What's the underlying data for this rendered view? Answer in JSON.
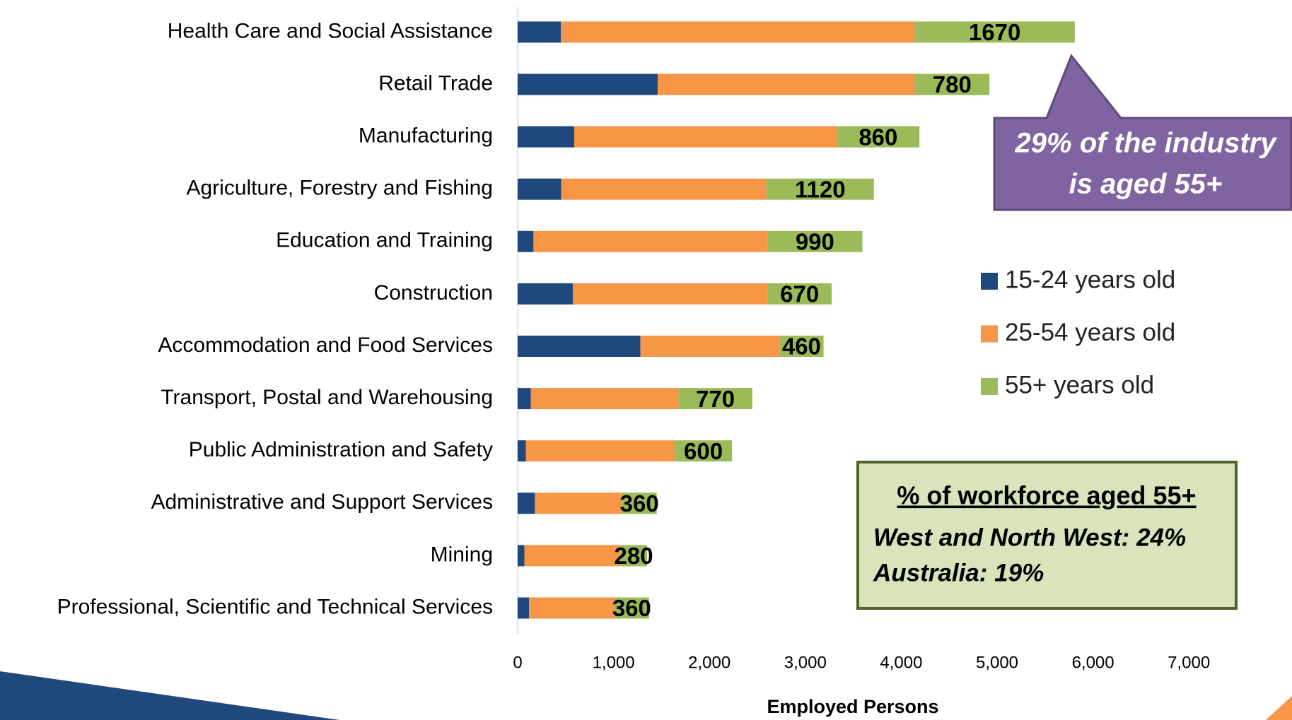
{
  "chart_data": {
    "type": "stacked-barh",
    "categories": [
      "Health Care and Social Assistance",
      "Retail Trade",
      "Manufacturing",
      "Agriculture, Forestry and Fishing",
      "Education and Training",
      "Construction",
      "Accommodation and Food Services",
      "Transport, Postal and Warehousing",
      "Public Administration and Safety",
      "Administrative and Support Services",
      "Mining",
      "Professional, Scientific and Technical Services"
    ],
    "series": [
      {
        "name": "15-24 years old",
        "color": "#1f497d",
        "values": [
          450,
          1460,
          590,
          455,
          165,
          575,
          1280,
          137,
          86,
          180,
          70,
          120
        ]
      },
      {
        "name": "25-54 years old",
        "color": "#f79646",
        "values": [
          3690,
          2680,
          2740,
          2140,
          2440,
          2030,
          1450,
          1540,
          1550,
          910,
          1000,
          890
        ]
      },
      {
        "name": "55+ years old",
        "color": "#9bbb59",
        "values": [
          1670,
          780,
          860,
          1120,
          990,
          670,
          460,
          770,
          600,
          360,
          280,
          360
        ]
      }
    ],
    "xlabel": "Employed Persons",
    "xlim": [
      0,
      7000
    ],
    "xticks": [
      0,
      {
        "value": 1000,
        "label": "1,000"
      },
      {
        "value": 2000,
        "label": "2,000"
      },
      {
        "value": 3000,
        "label": "3,000"
      },
      {
        "value": 4000,
        "label": "4,000"
      },
      {
        "value": 5000,
        "label": "5,000"
      },
      {
        "value": 6000,
        "label": "6,000"
      },
      {
        "value": 7000,
        "label": "7,000"
      }
    ],
    "data_labels_series": 2,
    "annotations": {
      "callout": [
        "29% of the industry",
        "is aged 55+"
      ],
      "box_title": "% of workforce aged 55+",
      "box_lines": [
        "West and North West: 24%",
        "Australia: 19%"
      ]
    }
  }
}
